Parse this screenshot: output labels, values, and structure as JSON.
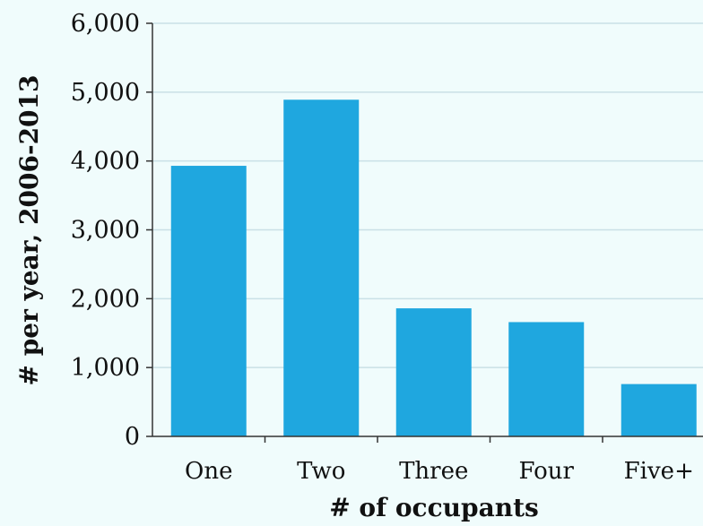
{
  "chart_data": {
    "type": "bar",
    "categories": [
      "One",
      "Two",
      "Three",
      "Four",
      "Five+"
    ],
    "values": [
      3930,
      4890,
      1860,
      1660,
      760
    ],
    "title": "",
    "xlabel": "# of occupants",
    "ylabel": "# per year, 2006-2013",
    "ylim": [
      0,
      6000
    ],
    "yticks": [
      0,
      1000,
      2000,
      3000,
      4000,
      5000,
      6000
    ],
    "ytick_labels": [
      "0",
      "1,000",
      "2,000",
      "3,000",
      "4,000",
      "5,000",
      "6,000"
    ],
    "grid": true,
    "legend": "none",
    "bar_color": "#1fa7df",
    "grid_color": "#c9e0e6",
    "background_color": "#f0fcfc"
  }
}
